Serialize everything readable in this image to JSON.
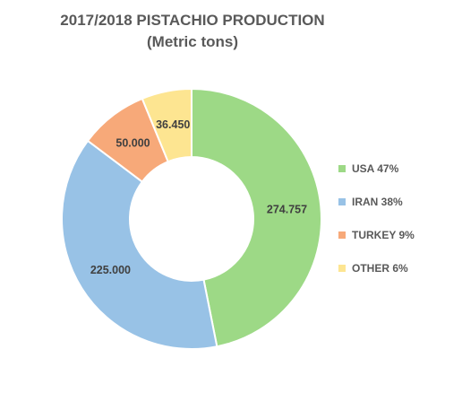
{
  "chart_data": {
    "type": "pie",
    "style": "donut",
    "title": "2017/2018 PISTACHIO PRODUCTION",
    "subtitle": "(Metric tons)",
    "legend_position": "right",
    "slices": [
      {
        "name": "USA",
        "value": 274.757,
        "label": "274.757",
        "legend": "USA 47%",
        "color": "#9dd986"
      },
      {
        "name": "IRAN",
        "value": 225.0,
        "label": "225.000",
        "legend": "IRAN 38%",
        "color": "#98c2e6"
      },
      {
        "name": "TURKEY",
        "value": 50.0,
        "label": "50.000",
        "legend": "TURKEY 9%",
        "color": "#f7a979"
      },
      {
        "name": "OTHER",
        "value": 36.45,
        "label": "36.450",
        "legend": "OTHER 6%",
        "color": "#fde591"
      }
    ],
    "label_color": "#404040"
  }
}
